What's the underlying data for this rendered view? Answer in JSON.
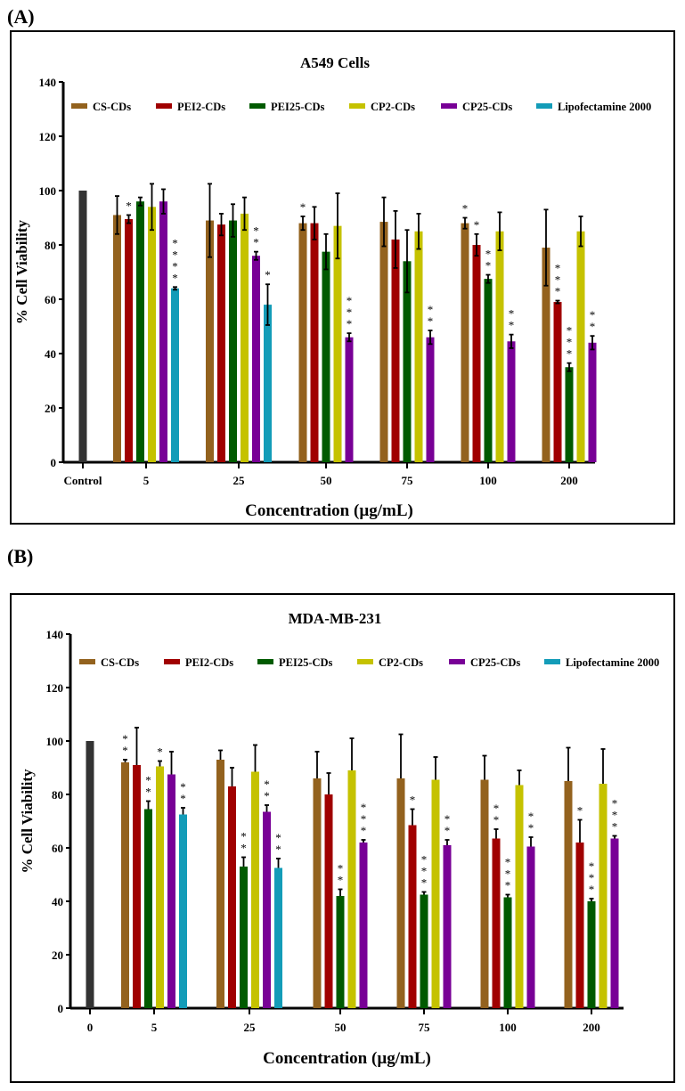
{
  "colors": {
    "CS-CDs": "#93621e",
    "PEI2-CDs": "#a00000",
    "PEI25-CDs": "#005a00",
    "CP2-CDs": "#c5c200",
    "CP25-CDs": "#780096",
    "Lipofectamine 2000": "#139cb8",
    "control": "#333333"
  },
  "chart_data": [
    {
      "panel_label": "(A)",
      "type": "bar",
      "title": "A549 Cells",
      "xlabel": "Concentration (µg/mL)",
      "ylabel": "% Cell Viability",
      "ylim": [
        0,
        140
      ],
      "yticks": [
        0,
        20,
        40,
        60,
        80,
        100,
        120,
        140
      ],
      "control_label": "Control",
      "control_value": 100,
      "categories": [
        "5",
        "25",
        "50",
        "75",
        "100",
        "200"
      ],
      "legend": [
        "CS-CDs",
        "PEI2-CDs",
        "PEI25-CDs",
        "CP2-CDs",
        "CP25-CDs",
        "Lipofectamine 2000"
      ],
      "legend_position": "top",
      "error_style": "both",
      "series": [
        {
          "name": "CS-CDs",
          "values": [
            91,
            89,
            88,
            88.5,
            88,
            79
          ],
          "errors": [
            7,
            13.5,
            2.5,
            9,
            2,
            14
          ],
          "stars": [
            "",
            "",
            "*",
            "",
            "*",
            ""
          ]
        },
        {
          "name": "PEI2-CDs",
          "values": [
            89.5,
            87.5,
            88,
            82,
            80,
            59
          ],
          "errors": [
            1.5,
            4,
            6,
            10.5,
            4,
            0.5
          ],
          "stars": [
            "*",
            "",
            "",
            "",
            "*",
            "***"
          ]
        },
        {
          "name": "PEI25-CDs",
          "values": [
            96,
            89,
            77.5,
            74,
            67.5,
            35
          ],
          "errors": [
            1.5,
            6,
            6.5,
            11.5,
            1.5,
            1.5
          ],
          "stars": [
            "",
            "",
            "",
            "",
            "**",
            "***"
          ]
        },
        {
          "name": "CP2-CDs",
          "values": [
            94,
            91.5,
            87,
            85,
            85,
            85
          ],
          "errors": [
            8.5,
            6,
            12,
            6.5,
            7,
            5.5
          ],
          "stars": [
            "",
            "",
            "",
            "",
            "",
            ""
          ]
        },
        {
          "name": "CP25-CDs",
          "values": [
            96,
            76,
            46,
            46,
            44.5,
            44
          ],
          "errors": [
            4.5,
            1.5,
            1.5,
            2.5,
            2.5,
            2.5
          ],
          "stars": [
            "",
            "**",
            "***",
            "**",
            "**",
            "**"
          ]
        },
        {
          "name": "Lipofectamine 2000",
          "values": [
            64,
            58,
            null,
            null,
            null,
            null
          ],
          "errors": [
            0.5,
            7.5,
            null,
            null,
            null,
            null
          ],
          "stars": [
            "****",
            "*",
            "",
            "",
            "",
            ""
          ]
        }
      ]
    },
    {
      "panel_label": "(B)",
      "type": "bar",
      "title": "MDA-MB-231",
      "xlabel": "Concentration (µg/mL)",
      "ylabel": "% Cell Viability",
      "ylim": [
        0,
        140
      ],
      "yticks": [
        0,
        20,
        40,
        60,
        80,
        100,
        120,
        140
      ],
      "control_label": "0",
      "control_value": 100,
      "categories": [
        "5",
        "25",
        "50",
        "75",
        "100",
        "200"
      ],
      "legend": [
        "CS-CDs",
        "PEI2-CDs",
        "PEI25-CDs",
        "CP2-CDs",
        "CP25-CDs",
        "Lipofectamine 2000"
      ],
      "legend_position": "top",
      "error_style": "up",
      "series": [
        {
          "name": "CS-CDs",
          "values": [
            92,
            93,
            86,
            86,
            85.5,
            85
          ],
          "errors": [
            1,
            3.5,
            10,
            16.5,
            9,
            12.5
          ],
          "stars": [
            "**",
            "",
            "",
            "",
            "",
            ""
          ]
        },
        {
          "name": "PEI2-CDs",
          "values": [
            91,
            83,
            80,
            68.5,
            63.5,
            62
          ],
          "errors": [
            14,
            7,
            8,
            6,
            3.5,
            8.5
          ],
          "stars": [
            "",
            "",
            "",
            "*",
            "**",
            "*"
          ]
        },
        {
          "name": "PEI25-CDs",
          "values": [
            74.5,
            53,
            42,
            42.5,
            41.5,
            40
          ],
          "errors": [
            3,
            3.5,
            2.5,
            1,
            1,
            1
          ],
          "stars": [
            "**",
            "**",
            "**",
            "***",
            "***",
            "***"
          ]
        },
        {
          "name": "CP2-CDs",
          "values": [
            90.5,
            88.5,
            89,
            85.5,
            83.5,
            84
          ],
          "errors": [
            2,
            10,
            12,
            8.5,
            5.5,
            13
          ],
          "stars": [
            "*",
            "",
            "",
            "",
            "",
            ""
          ]
        },
        {
          "name": "CP25-CDs",
          "values": [
            87.5,
            73.5,
            62,
            61,
            60.5,
            63.5
          ],
          "errors": [
            8.5,
            2.5,
            1,
            2,
            3.5,
            1
          ],
          "stars": [
            "",
            "**",
            "***",
            "**",
            "**",
            "***"
          ]
        },
        {
          "name": "Lipofectamine 2000",
          "values": [
            72.5,
            52.5,
            null,
            null,
            null,
            null
          ],
          "errors": [
            2.5,
            3.5,
            null,
            null,
            null,
            null
          ],
          "stars": [
            "**",
            "**",
            "",
            "",
            "",
            ""
          ]
        }
      ]
    }
  ]
}
